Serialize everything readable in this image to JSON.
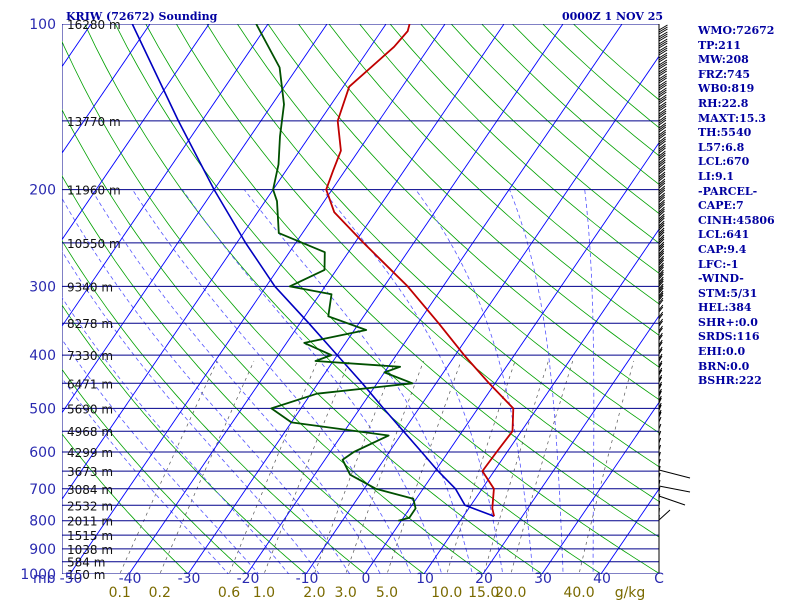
{
  "header": {
    "station": "KRIW (72672) Sounding",
    "time": "0000Z  1 NOV 25"
  },
  "indices": [
    "WMO:72672",
    "TP:211",
    "MW:208",
    "FRZ:745",
    "WB0:819",
    "RH:22.8",
    "MAXT:15.3",
    "TH:5540",
    "L57:6.8",
    "LCL:670",
    "LI:9.1",
    "-PARCEL-",
    "CAPE:7",
    "CINH:45806",
    "LCL:641",
    "CAP:9.4",
    "LFC:-1",
    "-WIND-",
    "STM:5/31",
    "HEL:384",
    "SHR+:0.0",
    "SRDS:116",
    "EHI:0.0",
    "BRN:0.0",
    "BSHR:222"
  ],
  "colors": {
    "isobar": "#00008b",
    "isotherm": "#0000ff",
    "dry_adiabat": "#00a000",
    "moist_adiabat": "#5555ff",
    "mixing_ratio": "#555555",
    "temperature": "#c00000",
    "dewpoint": "#005000",
    "parcel": "#0000c0",
    "header_text": "#0000a0",
    "mixing_label": "#7a6a00"
  },
  "chart_data": {
    "type": "line",
    "subtype": "skew-t log-p",
    "pressure_levels": [
      100,
      200,
      300,
      400,
      500,
      600,
      700,
      800,
      900,
      1000
    ],
    "pressure_tick_labels": [
      "100",
      "200",
      "300",
      "400",
      "500",
      "600",
      "700",
      "800",
      "900",
      "1000"
    ],
    "y_unit_label": "mb",
    "height_labels": [
      {
        "p": 100,
        "label": "16280 m"
      },
      {
        "p": 150,
        "label": "13770 m"
      },
      {
        "p": 200,
        "label": "11960 m"
      },
      {
        "p": 250,
        "label": "10550 m"
      },
      {
        "p": 300,
        "label": "9340 m"
      },
      {
        "p": 350,
        "label": "8278 m"
      },
      {
        "p": 400,
        "label": "7330 m"
      },
      {
        "p": 450,
        "label": "6471 m"
      },
      {
        "p": 500,
        "label": "5690 m"
      },
      {
        "p": 550,
        "label": "4968 m"
      },
      {
        "p": 600,
        "label": "4299 m"
      },
      {
        "p": 650,
        "label": "3673 m"
      },
      {
        "p": 700,
        "label": "3084 m"
      },
      {
        "p": 750,
        "label": "2532 m"
      },
      {
        "p": 800,
        "label": "2011 m"
      },
      {
        "p": 850,
        "label": "1515 m"
      },
      {
        "p": 900,
        "label": "1038 m"
      },
      {
        "p": 950,
        "label": "584 m"
      },
      {
        "p": 1000,
        "label": "150 m"
      }
    ],
    "temperature_ticks": [
      -50,
      -40,
      -30,
      -20,
      -10,
      0,
      10,
      20,
      30,
      40
    ],
    "temperature_tick_labels": [
      "-50",
      "-40",
      "-30",
      "-20",
      "-10",
      "0",
      "10",
      "20",
      "30",
      "40",
      "C"
    ],
    "mixing_ratio_values": [
      0.1,
      0.2,
      0.6,
      1.0,
      2.0,
      3.0,
      5.0,
      10.0,
      15.0,
      20.0,
      40.0
    ],
    "mixing_ratio_labels": [
      "0.1",
      "0.2",
      "0.6",
      "1.0",
      "2.0",
      "3.0",
      "5.0",
      "10.0",
      "15.0",
      "20.0",
      "40.0",
      "g/kg"
    ],
    "series": [
      {
        "key": "temperature",
        "points": [
          [
            785,
            15.2
          ],
          [
            760,
            14.0
          ],
          [
            700,
            12.0
          ],
          [
            650,
            8.0
          ],
          [
            600,
            8.2
          ],
          [
            550,
            8.5
          ],
          [
            500,
            6.0
          ],
          [
            450,
            -1.0
          ],
          [
            400,
            -8.5
          ],
          [
            350,
            -16.5
          ],
          [
            300,
            -26.0
          ],
          [
            250,
            -38.5
          ],
          [
            220,
            -47.0
          ],
          [
            200,
            -51.0
          ],
          [
            185,
            -52.0
          ],
          [
            170,
            -53.0
          ],
          [
            150,
            -57.0
          ],
          [
            130,
            -59.0
          ],
          [
            110,
            -56.0
          ],
          [
            103,
            -55.5
          ],
          [
            100,
            -56.0
          ]
        ]
      },
      {
        "key": "dewpoint",
        "points": [
          [
            800,
            -0.5
          ],
          [
            790,
            1.0
          ],
          [
            760,
            1.0
          ],
          [
            730,
            -0.5
          ],
          [
            700,
            -8.0
          ],
          [
            660,
            -14.0
          ],
          [
            620,
            -17.0
          ],
          [
            600,
            -16.0
          ],
          [
            560,
            -12.0
          ],
          [
            530,
            -30.0
          ],
          [
            500,
            -35.0
          ],
          [
            470,
            -29.0
          ],
          [
            450,
            -14.0
          ],
          [
            430,
            -20.0
          ],
          [
            420,
            -18.0
          ],
          [
            410,
            -33.0
          ],
          [
            400,
            -31.0
          ],
          [
            380,
            -37.0
          ],
          [
            360,
            -28.0
          ],
          [
            340,
            -36.0
          ],
          [
            310,
            -38.0
          ],
          [
            300,
            -46.0
          ],
          [
            280,
            -42.0
          ],
          [
            260,
            -44.0
          ],
          [
            240,
            -54.0
          ],
          [
            210,
            -58.0
          ],
          [
            200,
            -60.0
          ],
          [
            180,
            -62.0
          ],
          [
            160,
            -65.0
          ],
          [
            140,
            -68.0
          ],
          [
            120,
            -73.0
          ],
          [
            100,
            -82.0
          ]
        ]
      },
      {
        "key": "parcel",
        "points": [
          [
            785,
            15.2
          ],
          [
            750,
            9.0
          ],
          [
            700,
            5.5
          ],
          [
            650,
            0.5
          ],
          [
            600,
            -4.5
          ],
          [
            550,
            -10.0
          ],
          [
            500,
            -16.0
          ],
          [
            450,
            -22.5
          ],
          [
            400,
            -30.0
          ],
          [
            350,
            -38.5
          ],
          [
            300,
            -48.5
          ],
          [
            250,
            -58.5
          ],
          [
            200,
            -70.0
          ],
          [
            150,
            -84.0
          ],
          [
            100,
            -103.0
          ]
        ]
      }
    ]
  }
}
